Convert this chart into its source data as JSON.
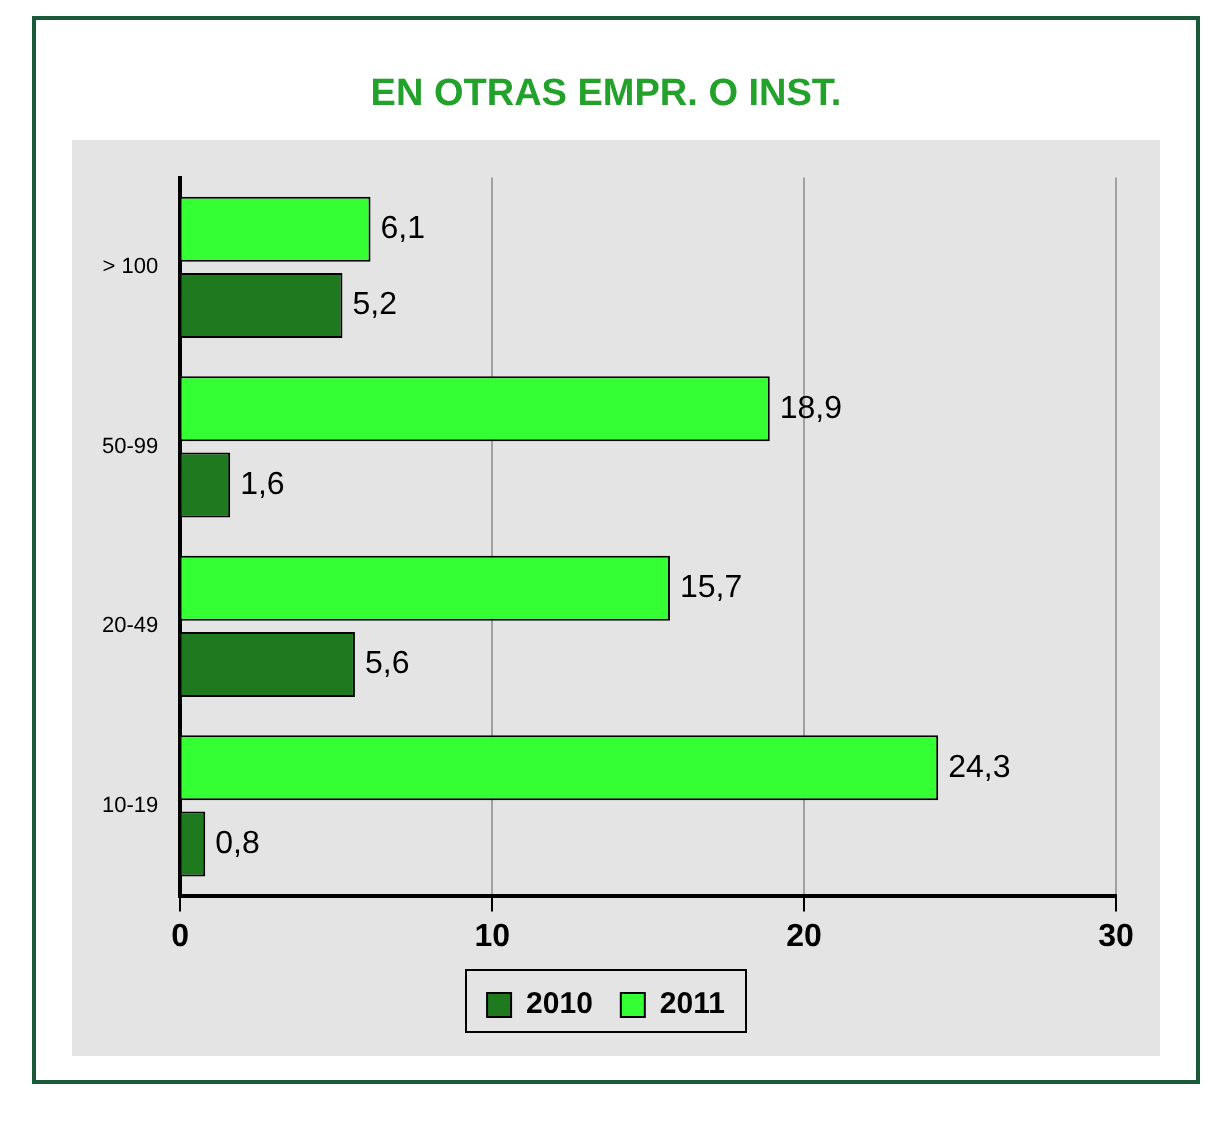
{
  "chart_data": {
    "type": "bar",
    "orientation": "horizontal",
    "title": "EN OTRAS EMPR. O INST.",
    "categories": [
      "> 100",
      "50-99",
      "20-49",
      "10-19"
    ],
    "series": [
      {
        "name": "2010",
        "color": "#1f7a1f",
        "values": [
          5.2,
          1.6,
          5.6,
          0.8
        ],
        "value_labels": [
          "5,2",
          "1,6",
          "5,6",
          "0,8"
        ]
      },
      {
        "name": "2011",
        "color": "#33ff33",
        "values": [
          6.1,
          18.9,
          15.7,
          24.3
        ],
        "value_labels": [
          "6,1",
          "18,9",
          "15,7",
          "24,3"
        ]
      }
    ],
    "xlim": [
      0,
      30
    ],
    "xticks": [
      0,
      10,
      20,
      30
    ],
    "grid": "x",
    "legend": "bottom"
  }
}
